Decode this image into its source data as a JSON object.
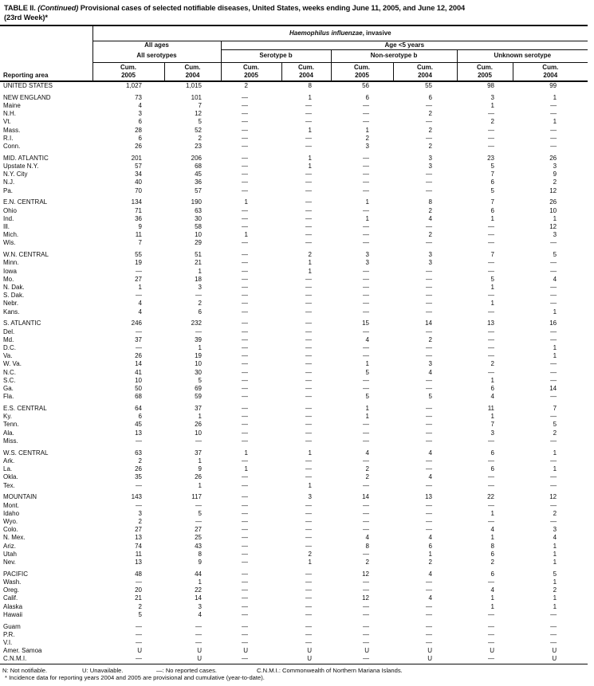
{
  "title": {
    "prefix": "TABLE II.",
    "continued": "(Continued)",
    "line1_rest": "Provisional cases of selected notifiable diseases, United States, weeks ending June 11, 2005, and June 12, 2004",
    "line2": "(23rd Week)*"
  },
  "table": {
    "disease": {
      "italic": "Haemophilus influenzae",
      "rest": ", invasive"
    },
    "labels": {
      "reporting_area": "Reporting area",
      "all_ages": "All ages",
      "age_under5": "Age <5 years",
      "all_serotypes": "All serotypes",
      "serotype_b": "Serotype b",
      "non_serotype_b": "Non-serotype b",
      "unknown_serotype": "Unknown serotype",
      "cum": "Cum.",
      "y2005": "2005",
      "y2004": "2004"
    },
    "column_order_note": "each group has Cum. 2005 then Cum. 2004",
    "sections": [
      {
        "name": "us-total",
        "rows": [
          [
            "UNITED STATES",
            "1,027",
            "1,015",
            "2",
            "8",
            "56",
            "55",
            "98",
            "99"
          ]
        ]
      },
      {
        "name": "new-england",
        "rows": [
          [
            "NEW ENGLAND",
            "73",
            "101",
            "—",
            "1",
            "6",
            "6",
            "3",
            "1"
          ],
          [
            "Maine",
            "4",
            "7",
            "—",
            "—",
            "—",
            "—",
            "1",
            "—"
          ],
          [
            "N.H.",
            "3",
            "12",
            "—",
            "—",
            "—",
            "2",
            "—",
            "—"
          ],
          [
            "Vt.",
            "6",
            "5",
            "—",
            "—",
            "—",
            "—",
            "2",
            "1"
          ],
          [
            "Mass.",
            "28",
            "52",
            "—",
            "1",
            "1",
            "2",
            "—",
            "—"
          ],
          [
            "R.I.",
            "6",
            "2",
            "—",
            "—",
            "2",
            "—",
            "—",
            "—"
          ],
          [
            "Conn.",
            "26",
            "23",
            "—",
            "—",
            "3",
            "2",
            "—",
            "—"
          ]
        ]
      },
      {
        "name": "mid-atlantic",
        "rows": [
          [
            "MID. ATLANTIC",
            "201",
            "206",
            "—",
            "1",
            "—",
            "3",
            "23",
            "26"
          ],
          [
            "Upstate N.Y.",
            "57",
            "68",
            "—",
            "1",
            "—",
            "3",
            "5",
            "3"
          ],
          [
            "N.Y. City",
            "34",
            "45",
            "—",
            "—",
            "—",
            "—",
            "7",
            "9"
          ],
          [
            "N.J.",
            "40",
            "36",
            "—",
            "—",
            "—",
            "—",
            "6",
            "2"
          ],
          [
            "Pa.",
            "70",
            "57",
            "—",
            "—",
            "—",
            "—",
            "5",
            "12"
          ]
        ]
      },
      {
        "name": "en-central",
        "rows": [
          [
            "E.N. CENTRAL",
            "134",
            "190",
            "1",
            "—",
            "1",
            "8",
            "7",
            "26"
          ],
          [
            "Ohio",
            "71",
            "63",
            "—",
            "—",
            "—",
            "2",
            "6",
            "10"
          ],
          [
            "Ind.",
            "36",
            "30",
            "—",
            "—",
            "1",
            "4",
            "1",
            "1"
          ],
          [
            "Ill.",
            "9",
            "58",
            "—",
            "—",
            "—",
            "—",
            "—",
            "12"
          ],
          [
            "Mich.",
            "11",
            "10",
            "1",
            "—",
            "—",
            "2",
            "—",
            "3"
          ],
          [
            "Wis.",
            "7",
            "29",
            "—",
            "—",
            "—",
            "—",
            "—",
            "—"
          ]
        ]
      },
      {
        "name": "wn-central",
        "rows": [
          [
            "W.N. CENTRAL",
            "55",
            "51",
            "—",
            "2",
            "3",
            "3",
            "7",
            "5"
          ],
          [
            "Minn.",
            "19",
            "21",
            "—",
            "1",
            "3",
            "3",
            "—",
            "—"
          ],
          [
            "Iowa",
            "—",
            "1",
            "—",
            "1",
            "—",
            "—",
            "—",
            "—"
          ],
          [
            "Mo.",
            "27",
            "18",
            "—",
            "—",
            "—",
            "—",
            "5",
            "4"
          ],
          [
            "N. Dak.",
            "1",
            "3",
            "—",
            "—",
            "—",
            "—",
            "1",
            "—"
          ],
          [
            "S. Dak.",
            "—",
            "—",
            "—",
            "—",
            "—",
            "—",
            "—",
            "—"
          ],
          [
            "Nebr.",
            "4",
            "2",
            "—",
            "—",
            "—",
            "—",
            "1",
            "—"
          ],
          [
            "Kans.",
            "4",
            "6",
            "—",
            "—",
            "—",
            "—",
            "—",
            "1"
          ]
        ]
      },
      {
        "name": "s-atlantic",
        "rows": [
          [
            "S. ATLANTIC",
            "246",
            "232",
            "—",
            "—",
            "15",
            "14",
            "13",
            "16"
          ],
          [
            "Del.",
            "—",
            "—",
            "—",
            "—",
            "—",
            "—",
            "—",
            "—"
          ],
          [
            "Md.",
            "37",
            "39",
            "—",
            "—",
            "4",
            "2",
            "—",
            "—"
          ],
          [
            "D.C.",
            "—",
            "1",
            "—",
            "—",
            "—",
            "—",
            "—",
            "1"
          ],
          [
            "Va.",
            "26",
            "19",
            "—",
            "—",
            "—",
            "—",
            "—",
            "1"
          ],
          [
            "W. Va.",
            "14",
            "10",
            "—",
            "—",
            "1",
            "3",
            "2",
            "—"
          ],
          [
            "N.C.",
            "41",
            "30",
            "—",
            "—",
            "5",
            "4",
            "—",
            "—"
          ],
          [
            "S.C.",
            "10",
            "5",
            "—",
            "—",
            "—",
            "—",
            "1",
            "—"
          ],
          [
            "Ga.",
            "50",
            "69",
            "—",
            "—",
            "—",
            "—",
            "6",
            "14"
          ],
          [
            "Fla.",
            "68",
            "59",
            "—",
            "—",
            "5",
            "5",
            "4",
            "—"
          ]
        ]
      },
      {
        "name": "es-central",
        "rows": [
          [
            "E.S. CENTRAL",
            "64",
            "37",
            "—",
            "—",
            "1",
            "—",
            "11",
            "7"
          ],
          [
            "Ky.",
            "6",
            "1",
            "—",
            "—",
            "1",
            "—",
            "1",
            "—"
          ],
          [
            "Tenn.",
            "45",
            "26",
            "—",
            "—",
            "—",
            "—",
            "7",
            "5"
          ],
          [
            "Ala.",
            "13",
            "10",
            "—",
            "—",
            "—",
            "—",
            "3",
            "2"
          ],
          [
            "Miss.",
            "—",
            "—",
            "—",
            "—",
            "—",
            "—",
            "—",
            "—"
          ]
        ]
      },
      {
        "name": "ws-central",
        "rows": [
          [
            "W.S. CENTRAL",
            "63",
            "37",
            "1",
            "1",
            "4",
            "4",
            "6",
            "1"
          ],
          [
            "Ark.",
            "2",
            "1",
            "—",
            "—",
            "—",
            "—",
            "—",
            "—"
          ],
          [
            "La.",
            "26",
            "9",
            "1",
            "—",
            "2",
            "—",
            "6",
            "1"
          ],
          [
            "Okla.",
            "35",
            "26",
            "—",
            "—",
            "2",
            "4",
            "—",
            "—"
          ],
          [
            "Tex.",
            "—",
            "1",
            "—",
            "1",
            "—",
            "—",
            "—",
            "—"
          ]
        ]
      },
      {
        "name": "mountain",
        "rows": [
          [
            "MOUNTAIN",
            "143",
            "117",
            "—",
            "3",
            "14",
            "13",
            "22",
            "12"
          ],
          [
            "Mont.",
            "—",
            "—",
            "—",
            "—",
            "—",
            "—",
            "—",
            "—"
          ],
          [
            "Idaho",
            "3",
            "5",
            "—",
            "—",
            "—",
            "—",
            "1",
            "2"
          ],
          [
            "Wyo.",
            "2",
            "—",
            "—",
            "—",
            "—",
            "—",
            "—",
            "—"
          ],
          [
            "Colo.",
            "27",
            "27",
            "—",
            "—",
            "—",
            "—",
            "4",
            "3"
          ],
          [
            "N. Mex.",
            "13",
            "25",
            "—",
            "—",
            "4",
            "4",
            "1",
            "4"
          ],
          [
            "Ariz.",
            "74",
            "43",
            "—",
            "—",
            "8",
            "6",
            "8",
            "1"
          ],
          [
            "Utah",
            "11",
            "8",
            "—",
            "2",
            "—",
            "1",
            "6",
            "1"
          ],
          [
            "Nev.",
            "13",
            "9",
            "—",
            "1",
            "2",
            "2",
            "2",
            "1"
          ]
        ]
      },
      {
        "name": "pacific",
        "rows": [
          [
            "PACIFIC",
            "48",
            "44",
            "—",
            "—",
            "12",
            "4",
            "6",
            "5"
          ],
          [
            "Wash.",
            "—",
            "1",
            "—",
            "—",
            "—",
            "—",
            "—",
            "1"
          ],
          [
            "Oreg.",
            "20",
            "22",
            "—",
            "—",
            "—",
            "—",
            "4",
            "2"
          ],
          [
            "Calif.",
            "21",
            "14",
            "—",
            "—",
            "12",
            "4",
            "1",
            "1"
          ],
          [
            "Alaska",
            "2",
            "3",
            "—",
            "—",
            "—",
            "—",
            "1",
            "1"
          ],
          [
            "Hawaii",
            "5",
            "4",
            "—",
            "—",
            "—",
            "—",
            "—",
            "—"
          ]
        ]
      },
      {
        "name": "territories",
        "rows": [
          [
            "Guam",
            "—",
            "—",
            "—",
            "—",
            "—",
            "—",
            "—",
            "—"
          ],
          [
            "P.R.",
            "—",
            "—",
            "—",
            "—",
            "—",
            "—",
            "—",
            "—"
          ],
          [
            "V.I.",
            "—",
            "—",
            "—",
            "—",
            "—",
            "—",
            "—",
            "—"
          ],
          [
            "Amer. Samoa",
            "U",
            "U",
            "U",
            "U",
            "U",
            "U",
            "U",
            "U"
          ],
          [
            "C.N.M.I.",
            "—",
            "U",
            "—",
            "U",
            "—",
            "U",
            "—",
            "U"
          ]
        ]
      }
    ]
  },
  "footnotes": {
    "not_notifiable": "N: Not notifiable.",
    "unavailable": "U: Unavailable.",
    "no_reported": "—: No reported cases.",
    "cnmi": "C.N.M.I.: Commonwealth of Northern Mariana Islands.",
    "asterisk": "* Incidence data for reporting years 2004 and 2005 are provisional and cumulative (year-to-date)."
  },
  "colors": {
    "ink": "#0d0d0d",
    "background": "#ffffff"
  }
}
